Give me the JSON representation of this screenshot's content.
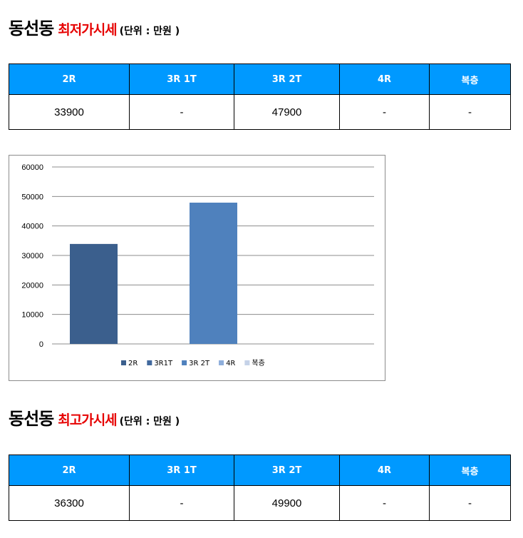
{
  "sections": [
    {
      "dong": "동선동",
      "kind": "최저가시세",
      "unit": "(단위 : 만원 )",
      "headers": [
        "2R",
        "3R 1T",
        "3R 2T",
        "4R",
        "복층"
      ],
      "values": [
        "33900",
        "-",
        "47900",
        "-",
        "-"
      ]
    },
    {
      "dong": "동선동",
      "kind": "최고가시세",
      "unit": "(단위 : 만원 )",
      "headers": [
        "2R",
        "3R 1T",
        "3R 2T",
        "4R",
        "복층"
      ],
      "values": [
        "36300",
        "-",
        "49900",
        "-",
        "-"
      ]
    }
  ],
  "chart_data": {
    "type": "bar",
    "title": "",
    "xlabel": "",
    "ylabel": "",
    "ylim": [
      0,
      60000
    ],
    "yticks": [
      "60000",
      "50000",
      "40000",
      "30000",
      "20000",
      "10000",
      "0"
    ],
    "grid": true,
    "legend_position": "bottom",
    "series": [
      {
        "name": "2R",
        "value": 33900,
        "color": "#3b5f8d"
      },
      {
        "name": "3R1T",
        "value": null,
        "color": "#42699e"
      },
      {
        "name": "3R 2T",
        "value": 47900,
        "color": "#4f81bd"
      },
      {
        "name": "4R",
        "value": null,
        "color": "#8eaedb"
      },
      {
        "name": "복층",
        "value": null,
        "color": "#c5d2e8"
      }
    ]
  }
}
